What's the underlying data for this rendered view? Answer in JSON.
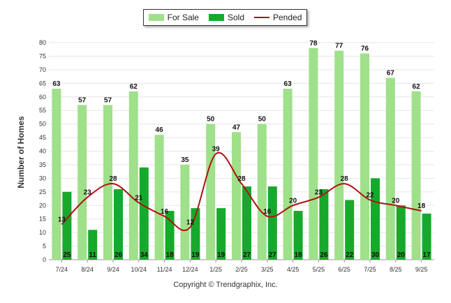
{
  "chart_data": {
    "type": "bar",
    "title": "",
    "xlabel": "",
    "ylabel": "Number of Homes",
    "ylim": [
      0,
      80
    ],
    "yticks": [
      0,
      5,
      10,
      15,
      20,
      25,
      30,
      35,
      40,
      45,
      50,
      55,
      60,
      65,
      70,
      75,
      80
    ],
    "categories": [
      "7/24",
      "8/24",
      "9/24",
      "10/24",
      "11/24",
      "12/24",
      "1/25",
      "2/25",
      "3/25",
      "4/25",
      "5/25",
      "6/25",
      "7/25",
      "8/25",
      "9/25"
    ],
    "series": [
      {
        "name": "For Sale",
        "kind": "bar",
        "color": "#9fe08a",
        "values": [
          63,
          57,
          57,
          62,
          46,
          35,
          50,
          47,
          50,
          63,
          78,
          77,
          76,
          67,
          62
        ]
      },
      {
        "name": "Sold",
        "kind": "bar",
        "color": "#17a92b",
        "values": [
          25,
          11,
          26,
          34,
          18,
          19,
          19,
          27,
          27,
          18,
          26,
          22,
          30,
          20,
          17
        ]
      },
      {
        "name": "Pended",
        "kind": "line",
        "color": "#b01212",
        "values": [
          13,
          23,
          28,
          21,
          16,
          12,
          39,
          28,
          16,
          20,
          23,
          28,
          22,
          20,
          18
        ]
      }
    ],
    "legend_position": "top-center"
  },
  "legend": {
    "items": [
      {
        "label": "For Sale",
        "color": "#9fe08a",
        "type": "bar"
      },
      {
        "label": "Sold",
        "color": "#17a92b",
        "type": "bar"
      },
      {
        "label": "Pended",
        "color": "#b01212",
        "type": "line"
      }
    ]
  },
  "copyright": "Copyright © Trendgraphix, Inc."
}
